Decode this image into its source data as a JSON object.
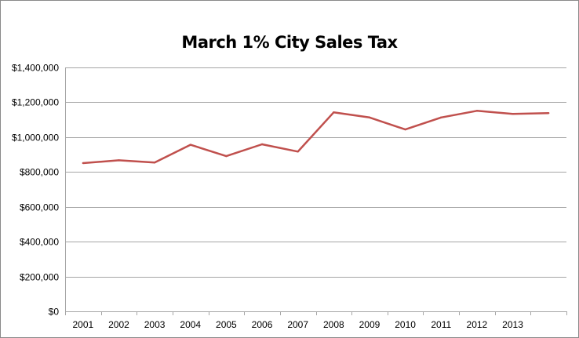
{
  "chart_data": {
    "type": "line",
    "title": "March 1% City Sales Tax",
    "xlabel": "",
    "ylabel": "",
    "categories": [
      "2001",
      "2002",
      "2003",
      "2004",
      "2005",
      "2006",
      "2007",
      "2008",
      "2009",
      "2010",
      "2011",
      "2012",
      "2013",
      ""
    ],
    "series": [
      {
        "name": "Sales Tax",
        "color": "#c0504d",
        "values": [
          851000,
          867000,
          854000,
          956000,
          891000,
          959000,
          917000,
          1142000,
          1113000,
          1044000,
          1113000,
          1151000,
          1133000,
          1138000
        ]
      }
    ],
    "ylim": [
      0,
      1400000
    ],
    "yticks": [
      0,
      200000,
      400000,
      600000,
      800000,
      1000000,
      1200000,
      1400000
    ],
    "ytick_labels": [
      "$0",
      "$200,000",
      "$400,000",
      "$600,000",
      "$800,000",
      "$1,000,000",
      "$1,200,000",
      "$1,400,000"
    ],
    "grid": true,
    "legend": "none"
  }
}
